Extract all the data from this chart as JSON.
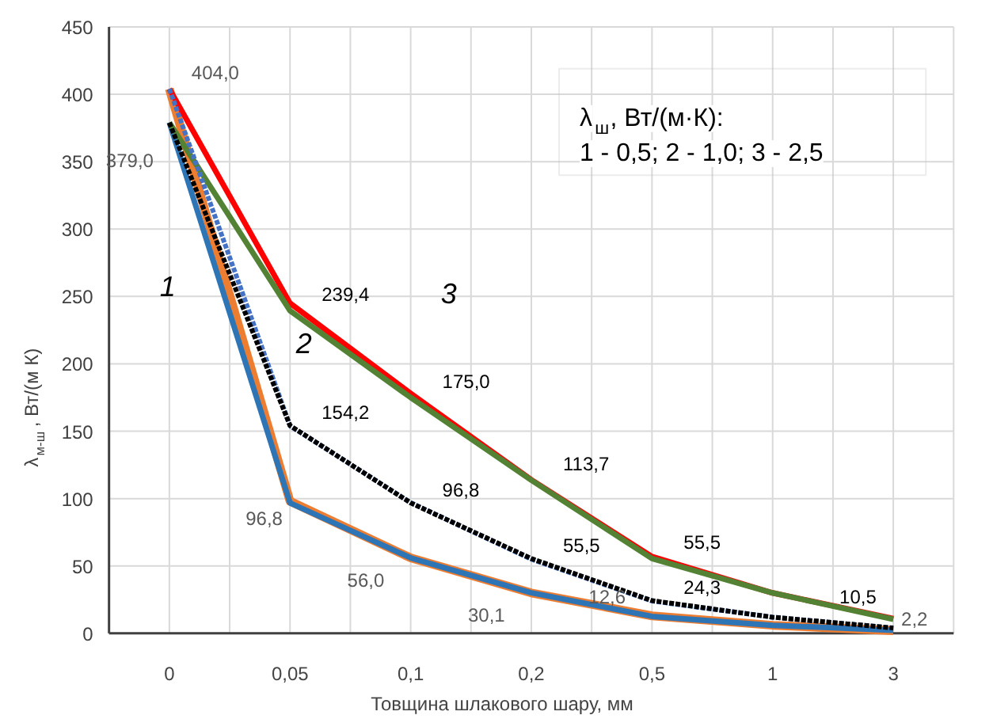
{
  "chart_data": {
    "type": "line",
    "xlabel": "Товщина шлакового шару, мм",
    "ylabel": "λ$_{м-ш}$, Вт/(м К)",
    "categories": [
      "0",
      "0,05",
      "0,1",
      "0,2",
      "0,5",
      "1",
      "3"
    ],
    "ylim": [
      0,
      450
    ],
    "yticks": [
      0,
      50,
      100,
      150,
      200,
      250,
      300,
      350,
      400,
      450
    ],
    "grid": true,
    "marker": "none",
    "series": [
      {
        "color": "#ed7d31",
        "values": [
          404,
          98,
          56,
          30,
          13,
          6,
          2
        ]
      },
      {
        "color": "#2e75b6",
        "values": [
          379,
          96.8,
          56.0,
          30.1,
          12.6,
          6,
          2.2
        ],
        "value_labels": [
          "379,0",
          "96,8",
          "56,0",
          "30,1",
          "12,6",
          null,
          "2,2"
        ]
      },
      {
        "color": "#4472c4",
        "line_style": "dashed",
        "values": [
          404,
          154,
          97,
          55,
          24,
          12,
          4
        ]
      },
      {
        "color": "#000000",
        "line_style": "dashed",
        "values": [
          379,
          154.2,
          96.8,
          55.5,
          24.3,
          12,
          4
        ],
        "value_labels": [
          null,
          "154,2",
          "96,8",
          "55,5",
          "24,3",
          null,
          null
        ]
      },
      {
        "color": "#ff0000",
        "values": [
          404.0,
          245,
          178,
          114,
          57,
          30,
          11
        ],
        "value_labels": [
          "404,0",
          null,
          null,
          null,
          null,
          null,
          null
        ]
      },
      {
        "color": "#548235",
        "values": [
          379,
          239.4,
          175.0,
          113.7,
          55.5,
          30,
          10.5
        ],
        "value_labels": [
          null,
          "239,4",
          "175,0",
          "113,7",
          "55,5",
          null,
          "10,5"
        ]
      }
    ],
    "annotations": [
      "1",
      "2",
      "3",
      "λ$_{ш}$, Вт/(м·К):",
      "1 - 0,5; 2 - 1,0; 3 - 2,5"
    ]
  }
}
